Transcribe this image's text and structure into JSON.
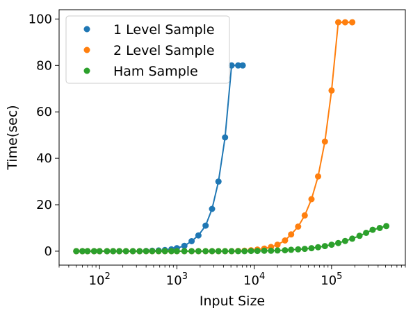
{
  "chart_data": {
    "type": "scatter",
    "xscale": "log",
    "xlabel": "Input Size",
    "ylabel": "Time(sec)",
    "xlim": [
      30,
      900000
    ],
    "ylim": [
      -6,
      104
    ],
    "yticks": [
      0,
      20,
      40,
      60,
      80,
      100
    ],
    "xticks": [
      {
        "value": 100,
        "base": "10",
        "exp": "2"
      },
      {
        "value": 1000,
        "base": "10",
        "exp": "3"
      },
      {
        "value": 10000,
        "base": "10",
        "exp": "4"
      },
      {
        "value": 100000,
        "base": "10",
        "exp": "5"
      }
    ],
    "grid": false,
    "legend_position": "upper-left",
    "series": [
      {
        "name": "1 Level Sample",
        "color": "#1f77b4",
        "x": [
          50,
          60,
          70,
          85,
          100,
          125,
          150,
          180,
          220,
          270,
          330,
          400,
          480,
          580,
          700,
          850,
          1000,
          1250,
          1550,
          1900,
          2350,
          2850,
          3450,
          4200,
          5100,
          6200,
          7100
        ],
        "y": [
          0,
          0,
          0,
          0,
          0,
          0,
          0,
          0,
          0,
          0,
          0,
          0.1,
          0.2,
          0.3,
          0.5,
          0.8,
          1.3,
          2.3,
          4.3,
          6.8,
          11,
          18.2,
          30,
          49,
          80,
          80,
          80
        ]
      },
      {
        "name": "2 Level Sample",
        "color": "#ff7f0e",
        "x": [
          50,
          60,
          70,
          85,
          100,
          125,
          150,
          180,
          220,
          270,
          330,
          400,
          480,
          580,
          700,
          850,
          1000,
          1250,
          1550,
          1900,
          2350,
          2850,
          3450,
          4200,
          5100,
          6200,
          7500,
          9100,
          11000,
          13500,
          16500,
          20000,
          25000,
          30000,
          37000,
          45000,
          55000,
          67000,
          82000,
          100000,
          122000,
          150000,
          185000
        ],
        "y": [
          0,
          0,
          0,
          0,
          0,
          0,
          0,
          0,
          0,
          0,
          0,
          0,
          0,
          0,
          0,
          0,
          0,
          0,
          0,
          0,
          0,
          0,
          0,
          0,
          0,
          0.1,
          0.2,
          0.4,
          0.7,
          1.1,
          1.8,
          2.8,
          4.6,
          7.2,
          10.6,
          15.4,
          22.4,
          32.2,
          47.2,
          69.2,
          98.6,
          98.6,
          98.6
        ]
      },
      {
        "name": "Ham Sample",
        "color": "#2ca02c",
        "x": [
          50,
          60,
          70,
          85,
          100,
          125,
          150,
          180,
          220,
          270,
          330,
          400,
          480,
          580,
          700,
          850,
          1000,
          1250,
          1550,
          1900,
          2350,
          2850,
          3450,
          4200,
          5100,
          6200,
          7500,
          9100,
          11000,
          13500,
          16500,
          20000,
          25000,
          30000,
          37000,
          45000,
          55000,
          67000,
          82000,
          100000,
          122000,
          150000,
          185000,
          230000,
          280000,
          340000,
          420000,
          510000
        ],
        "y": [
          0,
          0,
          0,
          0,
          0,
          0,
          0,
          0,
          0,
          0,
          0,
          0,
          0,
          0,
          0,
          0,
          0,
          0,
          0,
          0,
          0,
          0,
          0,
          0,
          0,
          0,
          0,
          0.1,
          0.1,
          0.2,
          0.2,
          0.3,
          0.4,
          0.6,
          0.8,
          1.0,
          1.3,
          1.7,
          2.2,
          2.8,
          3.5,
          4.4,
          5.4,
          6.6,
          7.9,
          9.2,
          10.0,
          10.8
        ]
      }
    ]
  }
}
